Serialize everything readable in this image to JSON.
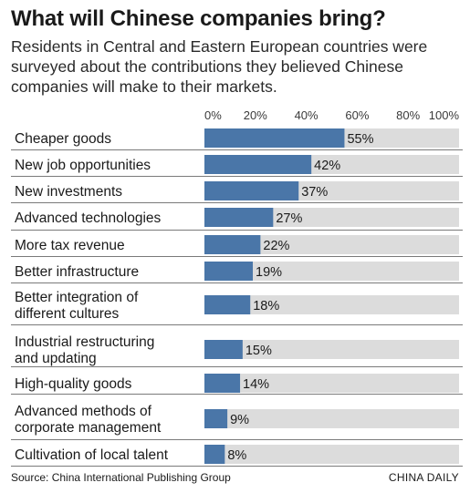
{
  "title": "What will Chinese companies bring?",
  "subtitle": "Residents in Central and Eastern European countries were surveyed about the contributions they believed Chinese companies will make to their markets.",
  "source": "Source: China International Publishing Group",
  "credit": "CHINA DAILY",
  "colors": {
    "bar": "#4a76a8",
    "track": "#dcdcdc",
    "rule": "#7a7a7a"
  },
  "chart_data": {
    "type": "bar",
    "orientation": "horizontal",
    "xlim": [
      0,
      100
    ],
    "x_ticks": [
      "0%",
      "20%",
      "40%",
      "60%",
      "80%",
      "100%"
    ],
    "categories": [
      [
        "Cheaper goods"
      ],
      [
        "New job opportunities"
      ],
      [
        "New investments"
      ],
      [
        "Advanced technologies"
      ],
      [
        "More tax revenue"
      ],
      [
        "Better infrastructure"
      ],
      [
        "Better integration of",
        "different cultures"
      ],
      [
        "Industrial restructuring",
        "and updating"
      ],
      [
        "High-quality goods"
      ],
      [
        "Advanced methods of",
        "corporate management"
      ],
      [
        "Cultivation of local talent"
      ]
    ],
    "values": [
      55,
      42,
      37,
      27,
      22,
      19,
      18,
      15,
      14,
      9,
      8
    ],
    "value_labels": [
      "55%",
      "42%",
      "37%",
      "27%",
      "22%",
      "19%",
      "18%",
      "15%",
      "14%",
      "9%",
      "8%"
    ]
  }
}
